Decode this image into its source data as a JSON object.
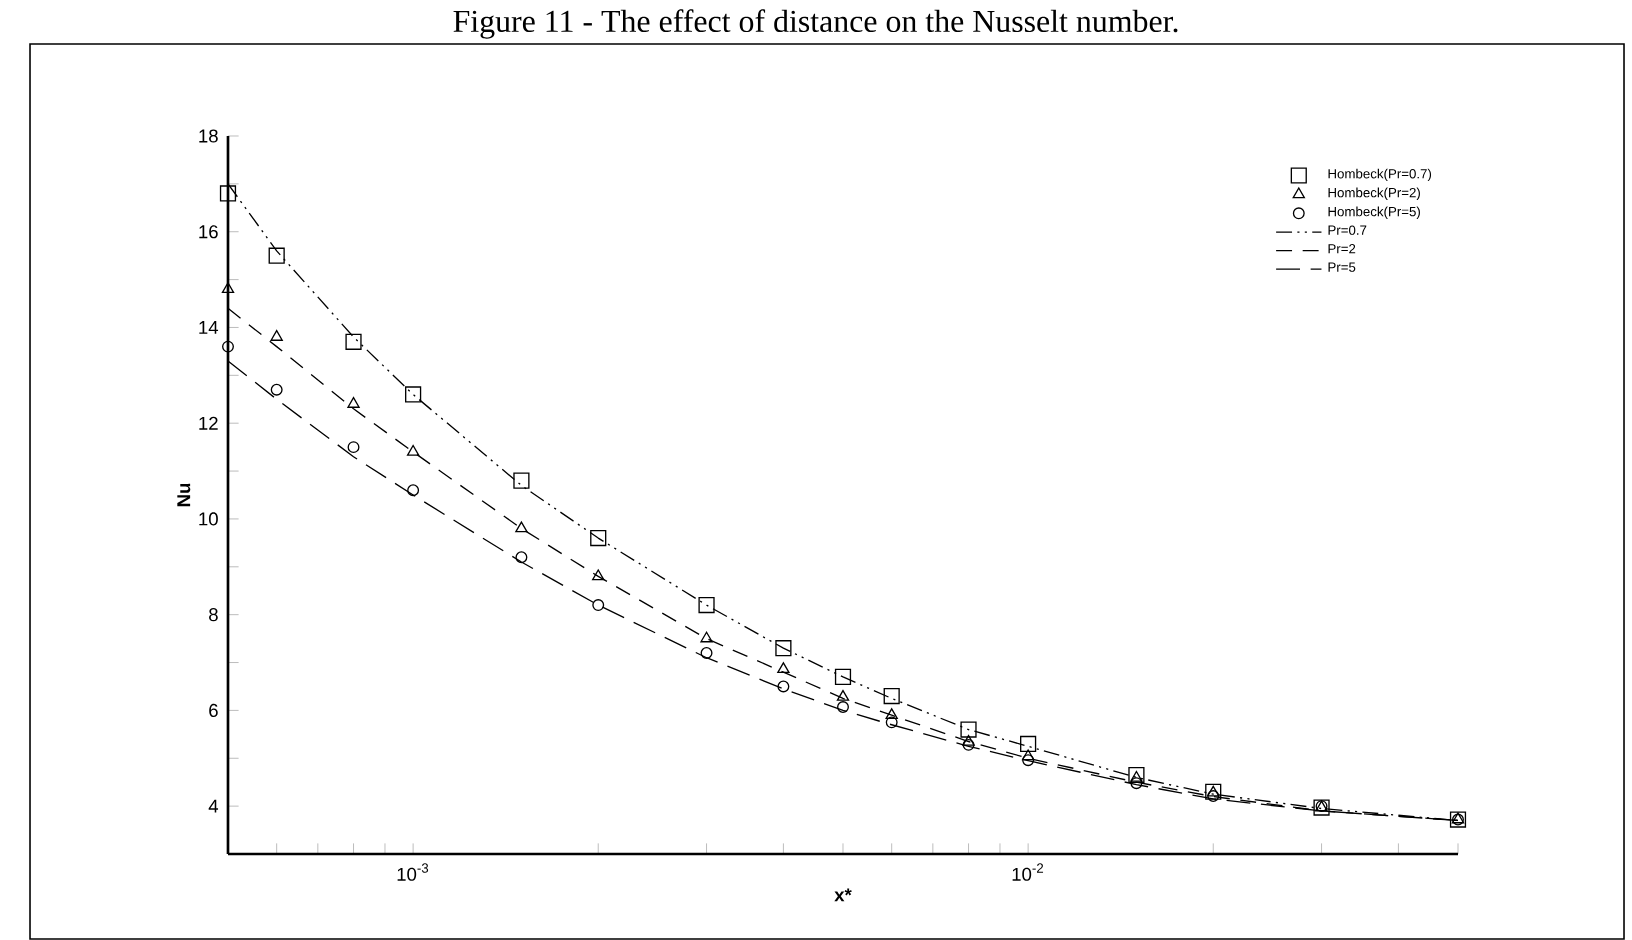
{
  "chart_data": {
    "type": "line",
    "title": "Figure 11 - The effect of distance on the Nusselt number.",
    "xlabel": "x*",
    "ylabel": "Nu",
    "log": "x",
    "legend": "top right",
    "xlim": [
      0.0005,
      0.05
    ],
    "ylim": [
      3,
      18
    ],
    "xticks": [
      {
        "value": 0.0005,
        "label": null
      },
      {
        "value": 0.0006,
        "label": null
      },
      {
        "value": 0.0007,
        "label": null
      },
      {
        "value": 0.0008,
        "label": null
      },
      {
        "value": 0.0009,
        "label": null
      },
      {
        "value": 0.001,
        "label": "10$^{-3}$"
      },
      {
        "value": 0.002,
        "label": null
      },
      {
        "value": 0.003,
        "label": null
      },
      {
        "value": 0.004,
        "label": null
      },
      {
        "value": 0.005,
        "label": null
      },
      {
        "value": 0.006,
        "label": null
      },
      {
        "value": 0.007,
        "label": null
      },
      {
        "value": 0.008,
        "label": null
      },
      {
        "value": 0.009,
        "label": null
      },
      {
        "value": 0.01,
        "label": "10$^{-2}$"
      },
      {
        "value": 0.02,
        "label": null
      },
      {
        "value": 0.03,
        "label": null
      },
      {
        "value": 0.04,
        "label": null
      },
      {
        "value": 0.05,
        "label": null
      }
    ],
    "yticks": [
      {
        "value": 3,
        "label": null
      },
      4,
      {
        "value": 5,
        "label": null
      },
      6,
      {
        "value": 7,
        "label": null
      },
      8,
      {
        "value": 9,
        "label": null
      },
      10,
      {
        "value": 11,
        "label": null
      },
      12,
      {
        "value": 13,
        "label": null
      },
      14,
      {
        "value": 15,
        "label": null
      },
      16,
      {
        "value": 17,
        "label": null
      },
      18
    ],
    "series": [
      {
        "name": "Hombeck(Pr=0.7)",
        "type": "scatter",
        "marker": "square",
        "color": "#000000",
        "x": [
          0.0005,
          0.0006,
          0.0008,
          0.001,
          0.0015,
          0.002,
          0.003,
          0.004,
          0.005,
          0.006,
          0.008,
          0.01,
          0.015,
          0.02,
          0.03,
          0.05
        ],
        "values": [
          16.8,
          15.5,
          13.7,
          12.6,
          10.8,
          9.6,
          8.2,
          7.3,
          6.7,
          6.3,
          5.6,
          5.3,
          4.65,
          4.3,
          3.97,
          3.72
        ]
      },
      {
        "name": "Hombeck(Pr=2)",
        "type": "scatter",
        "marker": "triangle",
        "color": "#000000",
        "x": [
          0.0005,
          0.0006,
          0.0008,
          0.001,
          0.0015,
          0.002,
          0.003,
          0.004,
          0.005,
          0.006,
          0.008,
          0.01,
          0.015,
          0.02,
          0.03,
          0.05
        ],
        "values": [
          14.8,
          13.8,
          12.4,
          11.4,
          9.8,
          8.8,
          7.5,
          6.86,
          6.28,
          5.9,
          5.34,
          5.04,
          4.59,
          4.28,
          3.97,
          3.72
        ]
      },
      {
        "name": "Hombeck(Pr=5)",
        "type": "scatter",
        "marker": "circle",
        "color": "#000000",
        "x": [
          0.0005,
          0.0006,
          0.0008,
          0.001,
          0.0015,
          0.002,
          0.003,
          0.004,
          0.005,
          0.006,
          0.008,
          0.01,
          0.015,
          0.02,
          0.03,
          0.05
        ],
        "values": [
          13.6,
          12.7,
          11.5,
          10.6,
          9.2,
          8.2,
          7.2,
          6.5,
          6.07,
          5.75,
          5.28,
          4.96,
          4.48,
          4.21,
          4.0,
          3.72
        ]
      },
      {
        "name": "Pr=0.7",
        "line_style": "dotted",
        "color": "#000000",
        "x": [
          0.0005,
          0.0006,
          0.0008,
          0.001,
          0.0015,
          0.002,
          0.003,
          0.004,
          0.005,
          0.006,
          0.008,
          0.01,
          0.015,
          0.02,
          0.03,
          0.05
        ],
        "values": [
          17.0,
          15.6,
          13.8,
          12.6,
          10.7,
          9.6,
          8.2,
          7.3,
          6.7,
          6.25,
          5.6,
          5.25,
          4.6,
          4.25,
          3.95,
          3.7
        ]
      },
      {
        "name": "Pr=2",
        "line_style": "dashed",
        "color": "#000000",
        "x": [
          0.0005,
          0.0006,
          0.0008,
          0.001,
          0.0015,
          0.002,
          0.003,
          0.004,
          0.005,
          0.006,
          0.008,
          0.01,
          0.015,
          0.02,
          0.03,
          0.05
        ],
        "values": [
          14.4,
          13.6,
          12.3,
          11.4,
          9.8,
          8.8,
          7.5,
          6.8,
          6.25,
          5.9,
          5.35,
          5.0,
          4.5,
          4.2,
          3.9,
          3.7
        ]
      },
      {
        "name": "Pr=5",
        "line_style": "long dashed",
        "color": "#000000",
        "x": [
          0.0005,
          0.0006,
          0.0008,
          0.001,
          0.0015,
          0.002,
          0.003,
          0.004,
          0.005,
          0.006,
          0.008,
          0.01,
          0.015,
          0.02,
          0.03,
          0.05
        ],
        "values": [
          13.3,
          12.5,
          11.3,
          10.5,
          9.1,
          8.2,
          7.1,
          6.45,
          6.0,
          5.7,
          5.25,
          4.95,
          4.45,
          4.15,
          3.9,
          3.7
        ]
      }
    ]
  }
}
